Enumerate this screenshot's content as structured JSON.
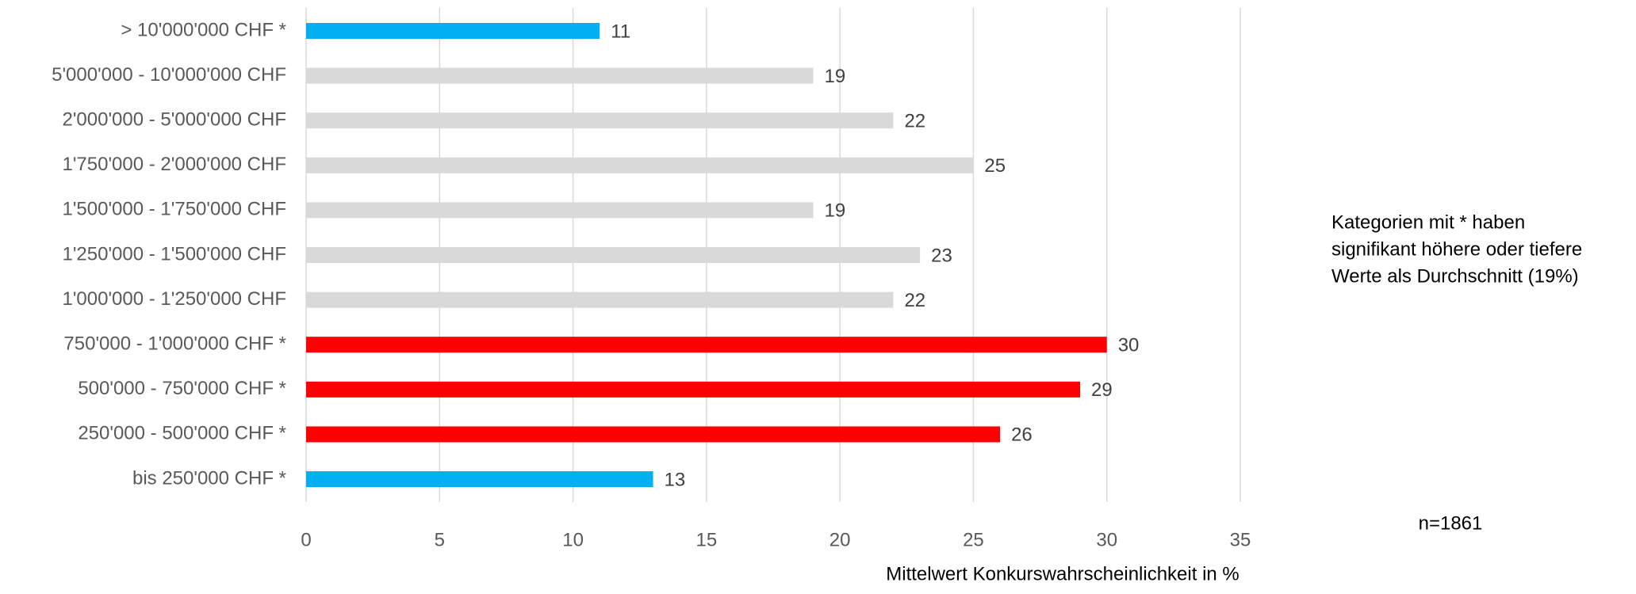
{
  "chart_data": {
    "type": "bar",
    "orientation": "horizontal",
    "categories": [
      "> 10'000'000 CHF *",
      "5'000'000 - 10'000'000 CHF",
      "2'000'000 - 5'000'000 CHF",
      "1'750'000 - 2'000'000 CHF",
      "1'500'000 - 1'750'000 CHF",
      "1'250'000 - 1'500'000 CHF",
      "1'000'000 - 1'250'000 CHF",
      "750'000 - 1'000'000 CHF *",
      "500'000 - 750'000 CHF *",
      "250'000 - 500'000 CHF *",
      "bis 250'000 CHF *"
    ],
    "values": [
      11,
      19,
      22,
      25,
      19,
      23,
      22,
      30,
      29,
      26,
      13
    ],
    "colors": [
      "#00b0f0",
      "#d9d9d9",
      "#d9d9d9",
      "#d9d9d9",
      "#d9d9d9",
      "#d9d9d9",
      "#d9d9d9",
      "#ff0000",
      "#ff0000",
      "#ff0000",
      "#00b0f0"
    ],
    "xlim": [
      0,
      35
    ],
    "xticks": [
      0,
      5,
      10,
      15,
      20,
      25,
      30,
      35
    ],
    "grid": true,
    "xlabel": "Mittelwert Konkurswahrscheinlichkeit in %",
    "annotation": [
      "Kategorien mit * haben",
      "signifikant höhere oder tiefere",
      "Werte als Durchschnitt (19%)"
    ],
    "note": "n=1861"
  }
}
